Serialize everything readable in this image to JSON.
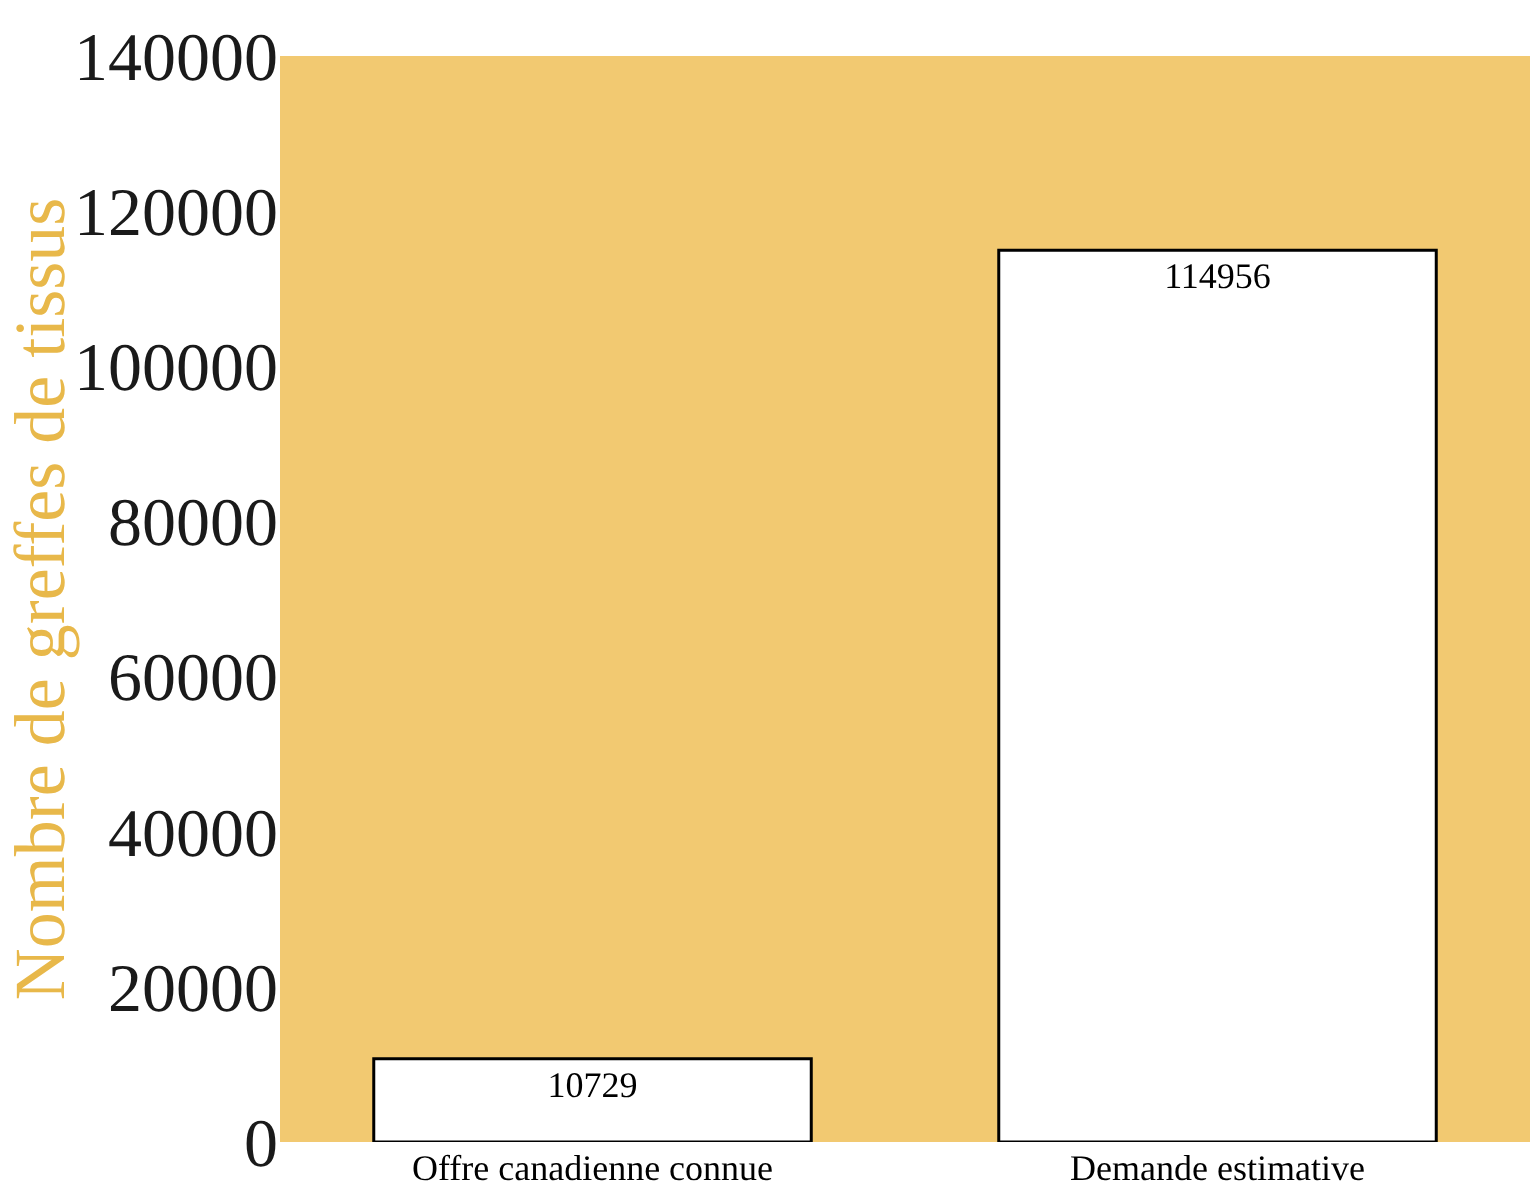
{
  "chart_data": {
    "type": "bar",
    "ylabel": "Nombre de greffes de tissus",
    "categories": [
      "Offre canadienne connue",
      "Demande estimative"
    ],
    "values": [
      10729,
      114956
    ],
    "color": "#ffffff",
    "ylim": [
      0,
      140000
    ],
    "yticks": [
      0,
      20000,
      40000,
      60000,
      80000,
      100000,
      120000,
      140000
    ],
    "grid": false,
    "data_labels": true,
    "legend": false
  }
}
